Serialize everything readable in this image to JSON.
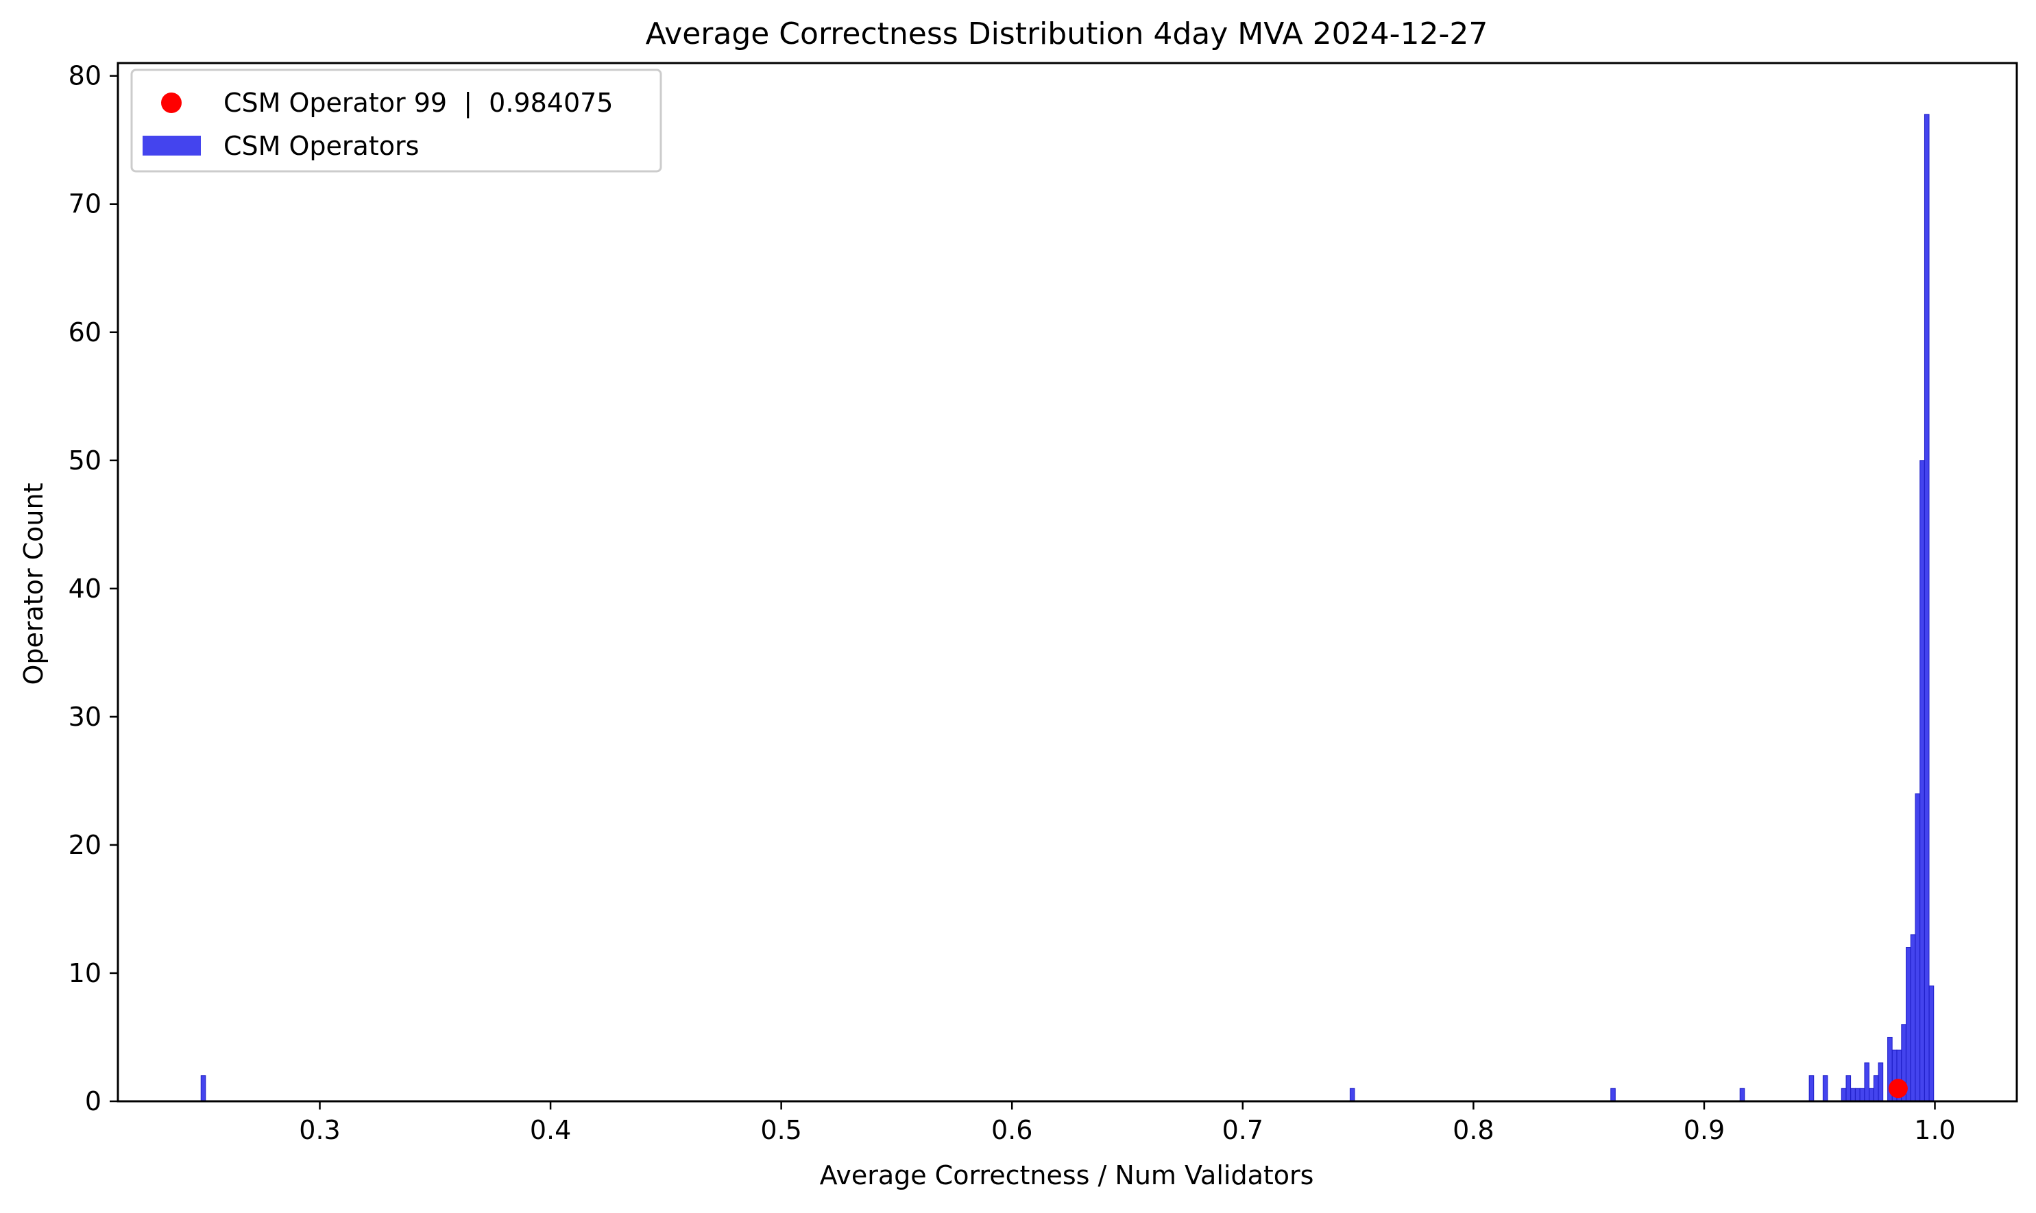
{
  "colors": {
    "bar": "#4444ee",
    "bar_edge": "#1f1fc8",
    "marker": "#ff0000",
    "axis": "#000000",
    "legend_border": "#cccccc"
  },
  "chart_data": {
    "type": "bar",
    "title": "Average Correctness Distribution 4day MVA 2024-12-27",
    "xlabel": "Average Correctness / Num Validators",
    "ylabel": "Operator Count",
    "xlim": [
      0.2125,
      1.0355
    ],
    "ylim": [
      0,
      81
    ],
    "xticks": [
      0.3,
      0.4,
      0.5,
      0.6,
      0.7,
      0.8,
      0.9,
      1.0
    ],
    "xtick_labels": [
      "0.3",
      "0.4",
      "0.5",
      "0.6",
      "0.7",
      "0.8",
      "0.9",
      "1.0"
    ],
    "yticks": [
      0,
      10,
      20,
      30,
      40,
      50,
      60,
      70,
      80
    ],
    "ytick_labels": [
      "0",
      "10",
      "20",
      "30",
      "40",
      "50",
      "60",
      "70",
      "80"
    ],
    "grid": false,
    "legend_position": "top-left",
    "series": [
      {
        "name": "CSM Operators",
        "kind": "histogram",
        "bin_width": 0.00195,
        "bins": [
          {
            "x": 0.2495,
            "count": 2
          },
          {
            "x": 0.7475,
            "count": 1
          },
          {
            "x": 0.8605,
            "count": 1
          },
          {
            "x": 0.9165,
            "count": 1
          },
          {
            "x": 0.9465,
            "count": 2
          },
          {
            "x": 0.9525,
            "count": 2
          },
          {
            "x": 0.9605,
            "count": 1
          },
          {
            "x": 0.9625,
            "count": 2
          },
          {
            "x": 0.9645,
            "count": 1
          },
          {
            "x": 0.9665,
            "count": 1
          },
          {
            "x": 0.9685,
            "count": 1
          },
          {
            "x": 0.9705,
            "count": 3
          },
          {
            "x": 0.9725,
            "count": 1
          },
          {
            "x": 0.9745,
            "count": 2
          },
          {
            "x": 0.9765,
            "count": 3
          },
          {
            "x": 0.9785,
            "count": 0
          },
          {
            "x": 0.9805,
            "count": 5
          },
          {
            "x": 0.9825,
            "count": 4
          },
          {
            "x": 0.9845,
            "count": 4
          },
          {
            "x": 0.9865,
            "count": 6
          },
          {
            "x": 0.9885,
            "count": 12
          },
          {
            "x": 0.9905,
            "count": 13
          },
          {
            "x": 0.9925,
            "count": 24
          },
          {
            "x": 0.9945,
            "count": 50
          },
          {
            "x": 0.9965,
            "count": 77
          },
          {
            "x": 0.9985,
            "count": 9
          }
        ]
      },
      {
        "name": "CSM Operator 99  |  0.984075",
        "kind": "scatter",
        "points": [
          {
            "x": 0.984075,
            "y": 1
          }
        ]
      }
    ]
  }
}
